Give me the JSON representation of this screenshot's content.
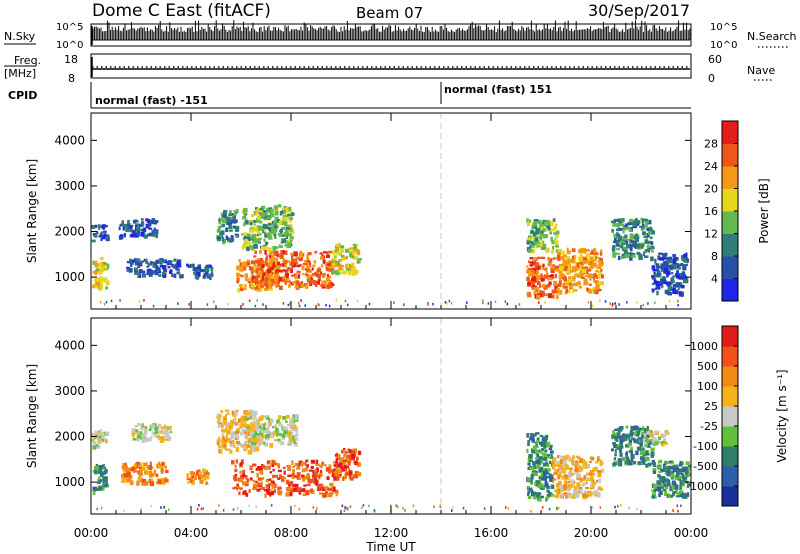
{
  "header": {
    "title": "Dome C East (fitACF)",
    "beam": "Beam 07",
    "date": "30/Sep/2017"
  },
  "summary_panels": {
    "nsky_label": "N.Sky",
    "nsky_ticks": [
      "10^5",
      "10^0"
    ],
    "nsearch_label": "N.Search",
    "nsearch_ticks": [
      "10^5",
      "10^0"
    ],
    "freq_label_1": "Freq.",
    "freq_label_2": "[MHz]",
    "freq_ticks": [
      "18",
      "8"
    ],
    "nave_label": "Nave",
    "nave_ticks": [
      "60",
      "0"
    ],
    "cpid_label": "CPID",
    "cpid_segments": [
      {
        "text": "normal (fast) -151",
        "start_hour": 0,
        "end_hour": 14
      },
      {
        "text": "normal (fast) 151",
        "start_hour": 14,
        "end_hour": 24
      }
    ]
  },
  "chart_data": [
    {
      "type": "heatmap",
      "title": "",
      "xlabel": "",
      "ylabel": "Slant Range [km]",
      "xlim": [
        0,
        24
      ],
      "ylim": [
        300,
        4600
      ],
      "yticks": [
        "1000",
        "2000",
        "3000",
        "4000"
      ],
      "colorbar": {
        "label": "Power [dB]",
        "ticks": [
          "4",
          "8",
          "12",
          "16",
          "20",
          "24",
          "28"
        ],
        "colors": [
          "#1f24e6",
          "#2850a8",
          "#2f7d78",
          "#62b94f",
          "#e7d51e",
          "#f29a16",
          "#f0561a",
          "#e51c1c"
        ]
      },
      "regions": [
        {
          "t0": 0.0,
          "t1": 0.6,
          "r0": 780,
          "r1": 1450,
          "level": 4
        },
        {
          "t0": 0.0,
          "t1": 0.6,
          "r0": 1820,
          "r1": 2180,
          "level": 1
        },
        {
          "t0": 1.1,
          "t1": 2.6,
          "r0": 1900,
          "r1": 2300,
          "level": 1
        },
        {
          "t0": 1.4,
          "t1": 3.6,
          "r0": 1050,
          "r1": 1420,
          "level": 1
        },
        {
          "t0": 3.8,
          "t1": 4.8,
          "r0": 1000,
          "r1": 1300,
          "level": 1
        },
        {
          "t0": 5.0,
          "t1": 5.8,
          "r0": 1800,
          "r1": 2500,
          "level": 2
        },
        {
          "t0": 5.8,
          "t1": 7.4,
          "r0": 750,
          "r1": 1400,
          "level": 5
        },
        {
          "t0": 6.0,
          "t1": 8.0,
          "r0": 1650,
          "r1": 2600,
          "level": 3
        },
        {
          "t0": 6.4,
          "t1": 9.6,
          "r0": 800,
          "r1": 1600,
          "level": 6
        },
        {
          "t0": 9.6,
          "t1": 10.7,
          "r0": 1100,
          "r1": 1750,
          "level": 4
        },
        {
          "t0": 17.4,
          "t1": 18.6,
          "r0": 600,
          "r1": 1450,
          "level": 6
        },
        {
          "t0": 17.4,
          "t1": 18.6,
          "r0": 1600,
          "r1": 2300,
          "level": 3
        },
        {
          "t0": 18.6,
          "t1": 20.4,
          "r0": 700,
          "r1": 1650,
          "level": 5
        },
        {
          "t0": 20.8,
          "t1": 22.4,
          "r0": 1450,
          "r1": 2300,
          "level": 2
        },
        {
          "t0": 22.4,
          "t1": 23.8,
          "r0": 650,
          "r1": 1550,
          "level": 1
        }
      ]
    },
    {
      "type": "heatmap",
      "title": "",
      "xlabel": "Time UT",
      "ylabel": "Slant Range [km]",
      "xlim": [
        0,
        24
      ],
      "ylim": [
        300,
        4600
      ],
      "xticks": [
        "00:00",
        "04:00",
        "08:00",
        "12:00",
        "16:00",
        "20:00",
        "00:00"
      ],
      "yticks": [
        "1000",
        "2000",
        "3000",
        "4000"
      ],
      "colorbar": {
        "label": "Velocity [m s⁻¹]",
        "ticks": [
          "1000",
          "500",
          "100",
          "25",
          "-25",
          "-100",
          "-500",
          "-1000"
        ],
        "colors": [
          "#1a2f9e",
          "#2f5fa8",
          "#2f7d6a",
          "#62c03b",
          "#c8c8c8",
          "#f5b21a",
          "#f08a14",
          "#f0501a",
          "#e31a1a"
        ]
      },
      "regions": [
        {
          "t0": 0.0,
          "t1": 0.6,
          "r0": 800,
          "r1": 1400,
          "level": 2
        },
        {
          "t0": 0.0,
          "t1": 0.6,
          "r0": 1800,
          "r1": 2200,
          "level": 4
        },
        {
          "t0": 1.2,
          "t1": 3.0,
          "r0": 1000,
          "r1": 1450,
          "level": 6
        },
        {
          "t0": 1.6,
          "t1": 3.2,
          "r0": 1950,
          "r1": 2300,
          "level": 4
        },
        {
          "t0": 3.8,
          "t1": 4.6,
          "r0": 1000,
          "r1": 1300,
          "level": 6
        },
        {
          "t0": 5.0,
          "t1": 6.6,
          "r0": 1700,
          "r1": 2600,
          "level": 5
        },
        {
          "t0": 6.2,
          "t1": 8.2,
          "r0": 1850,
          "r1": 2500,
          "level": 4
        },
        {
          "t0": 5.6,
          "t1": 9.8,
          "r0": 750,
          "r1": 1500,
          "level": 7
        },
        {
          "t0": 9.6,
          "t1": 10.7,
          "r0": 1100,
          "r1": 1750,
          "level": 7
        },
        {
          "t0": 17.4,
          "t1": 18.4,
          "r0": 650,
          "r1": 2100,
          "level": 2
        },
        {
          "t0": 18.4,
          "t1": 20.4,
          "r0": 700,
          "r1": 1600,
          "level": 5
        },
        {
          "t0": 20.8,
          "t1": 22.4,
          "r0": 1400,
          "r1": 2250,
          "level": 2
        },
        {
          "t0": 22.0,
          "t1": 23.0,
          "r0": 1850,
          "r1": 2150,
          "level": 4
        },
        {
          "t0": 22.4,
          "t1": 23.9,
          "r0": 700,
          "r1": 1500,
          "level": 2
        }
      ]
    }
  ]
}
